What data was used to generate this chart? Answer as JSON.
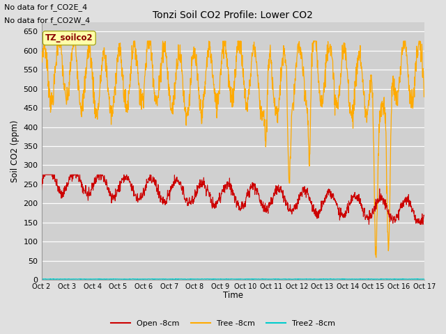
{
  "title": "Tonzi Soil CO2 Profile: Lower CO2",
  "ylabel": "Soil CO2 (ppm)",
  "xlabel": "Time",
  "annotations": [
    "No data for f_CO2E_4",
    "No data for f_CO2W_4"
  ],
  "watermark": "TZ_soilco2",
  "ylim": [
    0,
    675
  ],
  "yticks": [
    0,
    50,
    100,
    150,
    200,
    250,
    300,
    350,
    400,
    450,
    500,
    550,
    600,
    650
  ],
  "background_color": "#e0e0e0",
  "plot_bg_color": "#d0d0d0",
  "legend_labels": [
    "Open -8cm",
    "Tree -8cm",
    "Tree2 -8cm"
  ],
  "legend_colors": [
    "#cc0000",
    "#ffaa00",
    "#00cccc"
  ],
  "line_colors": {
    "open": "#cc0000",
    "tree": "#ffaa00",
    "tree2": "#00cccc"
  },
  "num_days": 15,
  "x_tick_labels": [
    "Oct 2",
    "Oct 3",
    "Oct 4",
    "Oct 5",
    "Oct 6",
    "Oct 7",
    "Oct 8",
    "Oct 9",
    "Oct 10",
    "Oct 11",
    "Oct 12",
    "Oct 13",
    "Oct 14",
    "Oct 15",
    "Oct 16",
    "Oct 17"
  ]
}
